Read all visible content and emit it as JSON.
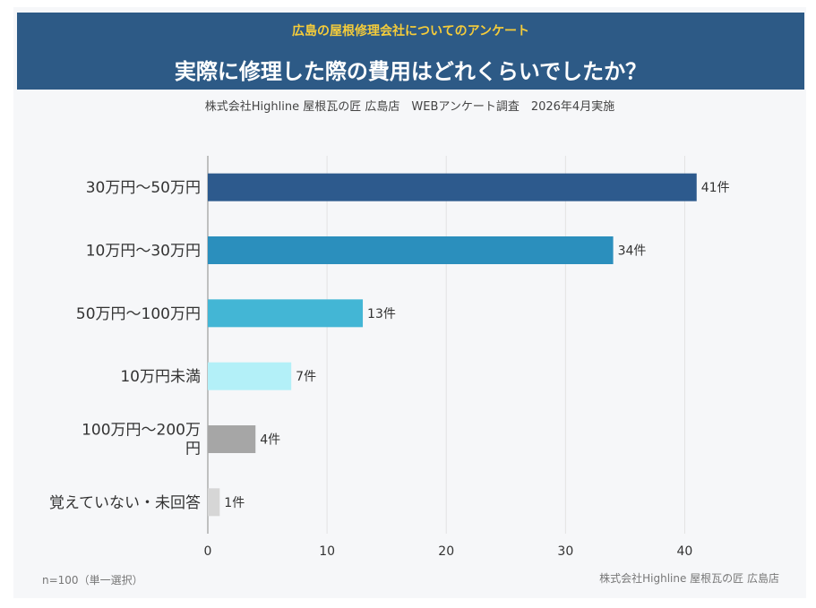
{
  "header": {
    "eyebrow": "広島の屋根修理会社についてのアンケート",
    "title": "実際に修理した際の費用はどれくらいでしたか？"
  },
  "subtitle": "株式会社Highline 屋根瓦の匠 広島店　WEBアンケート調査　2026年4月実施",
  "footer": {
    "note": "n=100（単一選択）",
    "credit": "株式会社Highline 屋根瓦の匠 広島店"
  },
  "chart_data": {
    "type": "bar",
    "orientation": "horizontal",
    "categories": [
      "30万円〜50万円",
      "10万円〜30万円",
      "50万円〜100万円",
      "10万円未満",
      "100万円〜200万円",
      "覚えていない・未回答"
    ],
    "values": [
      41,
      34,
      13,
      7,
      4,
      1
    ],
    "value_labels": [
      "41件",
      "34件",
      "13件",
      "7件",
      "4件",
      "1件"
    ],
    "colors": [
      "#2d5a8d",
      "#2b8fbd",
      "#43b6d5",
      "#b3f0f8",
      "#a6a6a6",
      "#d6d6d6"
    ],
    "xlim": [
      0,
      45
    ],
    "xticks": [
      0,
      10,
      20,
      30,
      40
    ],
    "grid": true
  }
}
